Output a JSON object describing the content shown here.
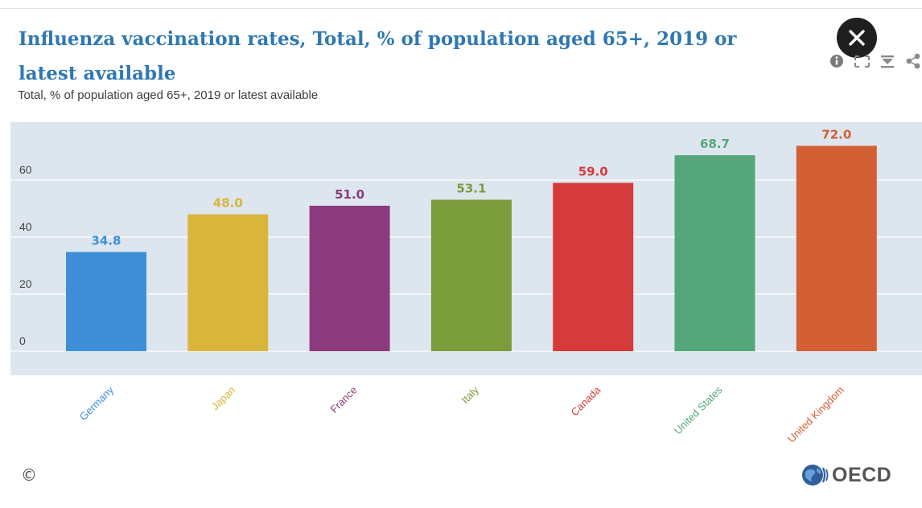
{
  "header": {
    "title": "Influenza vaccination rates, Total, % of population aged 65+, 2019 or latest available",
    "subtitle": "Total, % of population aged 65+, 2019 or latest available"
  },
  "toolbar": {
    "icons": [
      "info-icon",
      "expand-icon",
      "download-icon",
      "share-icon"
    ],
    "close_icon": "close-icon"
  },
  "footer": {
    "copyright_symbol": "©",
    "logo_text": "OECD"
  },
  "chart_data": {
    "type": "bar",
    "title": "Influenza vaccination rates, Total, % of population aged 65+, 2019 or latest available",
    "subtitle": "Total, % of population aged 65+, 2019 or latest available",
    "xlabel": "",
    "ylabel": "",
    "ylim": [
      0,
      75
    ],
    "yticks": [
      0,
      20,
      40,
      60
    ],
    "grid": true,
    "legend": "none",
    "categories": [
      "Germany",
      "Japan",
      "France",
      "Italy",
      "Canada",
      "United States",
      "United Kingdom"
    ],
    "values": [
      34.8,
      48.0,
      51.0,
      53.1,
      59.0,
      68.7,
      72.0
    ],
    "value_labels": [
      "34.8",
      "48.0",
      "51.0",
      "53.1",
      "59.0",
      "68.7",
      "72.0"
    ],
    "colors": [
      "#3f8fd8",
      "#d9b53c",
      "#8b3b7e",
      "#7b9c3b",
      "#d63b3b",
      "#55a77b",
      "#d35f35"
    ]
  }
}
